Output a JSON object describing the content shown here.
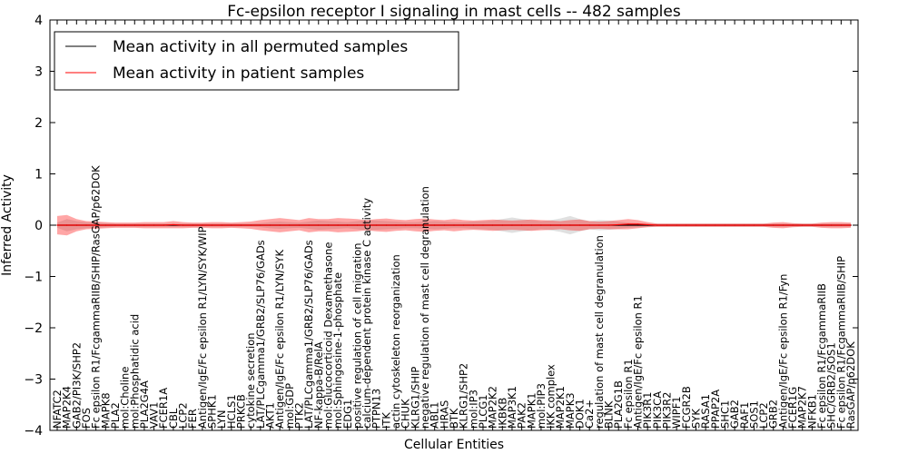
{
  "chart_data": {
    "type": "line",
    "title": "Fc-epsilon receptor I signaling in mast cells -- 482 samples",
    "xlabel": "Cellular Entities",
    "ylabel": "Inferred Activity",
    "ylim": [
      -4,
      4
    ],
    "yticks": [
      -4,
      -3,
      -2,
      -1,
      0,
      1,
      2,
      3,
      4
    ],
    "grid": false,
    "legend_position": "top-left",
    "categories": [
      "NFATC2",
      "MAP2K4",
      "GAB2/PI3K/SHP2",
      "FOS",
      "Fc epsilon R1/FcgammaRIIB/SHIP/RasGAP/p62DOK",
      "MAPK8",
      "PLA2",
      "mol:Choline",
      "mol:Phosphatidic acid",
      "PLA2G4A",
      "VAV1",
      "FCER1A",
      "CBL",
      "LCP2",
      "FER",
      "Antigen/IgE/Fc epsilon R1/LYN/SYK/WIP",
      "SPHK1",
      "LYN",
      "HCLS1",
      "PRKCB",
      "cytokine secretion",
      "LAT/PLCgamma1/GRB2/SLP76/GADs",
      "AKT1",
      "Antigen/IgE/Fc epsilon R1/LYN/SYK",
      "mol:GDP",
      "PTK2",
      "LAT/PLCgamma1/GRB2/SLP76/GADs",
      "NF-kappa-B/RelA",
      "mol:Glucocorticoid Dexamethasone",
      "mol:Sphingosine-1-phosphate",
      "EDG1",
      "positive regulation of cell migration",
      "calcium-dependent protein kinase C activity",
      "PTPN13",
      "ITK",
      "actin cytoskeleton reorganization",
      "CHUK",
      "KLRG1/SHIP",
      "negative regulation of mast cell degranulation",
      "ABL1",
      "HRAS",
      "BTK",
      "KLRG1/SHP2",
      "mol:IP3",
      "PLCG1",
      "MAP2K2",
      "IKBKB",
      "MAP3K1",
      "PAK2",
      "MAPK1",
      "mol:PIP3",
      "IKK complex",
      "MAP2K1",
      "MAPK3",
      "DOK1",
      "Ca2+",
      "regulation of mast cell degranulation",
      "BLNK",
      "PLA2G1B",
      "Fc epsilon R1",
      "Antigen/IgE/Fc epsilon R1",
      "PIK3R1",
      "PIK3CA",
      "PIK3R2",
      "WIPF1",
      "FCGR2B",
      "SYK",
      "RASA1",
      "PPAP2A",
      "SHC1",
      "GAB2",
      "RAF1",
      "SOS1",
      "LCP2",
      "GRB2",
      "Antigen/IgE/Fc epsilon R1/Fyn",
      "FCER1G",
      "MAP2K7",
      "NFKB1",
      "Fc epsilon R1/FcgammaRIIB",
      "SHC/GRB2/SOS1",
      "Fc epsilon R1/FcgammaRIIB/SHIP",
      "RasGAP/p62DOK"
    ],
    "series": [
      {
        "name": "Mean activity in all permuted samples",
        "color": "#000000",
        "values": [
          0.0,
          0.0,
          0.0,
          0.0,
          0.0,
          0.0,
          0.0,
          0.0,
          0.0,
          0.0,
          0.0,
          0.0,
          0.0,
          0.0,
          0.0,
          0.0,
          0.0,
          0.0,
          0.0,
          0.0,
          0.0,
          0.0,
          0.0,
          0.0,
          0.0,
          0.0,
          0.0,
          0.0,
          0.0,
          0.0,
          0.0,
          0.0,
          0.0,
          0.0,
          0.0,
          0.0,
          0.0,
          0.0,
          0.0,
          0.0,
          0.0,
          0.0,
          0.0,
          0.0,
          0.0,
          0.0,
          0.0,
          0.0,
          0.0,
          0.0,
          0.0,
          0.0,
          0.0,
          0.0,
          0.0,
          0.0,
          0.0,
          0.0,
          0.0,
          0.0,
          0.0,
          0.0,
          0.0,
          0.0,
          0.0,
          0.0,
          0.0,
          0.0,
          0.0,
          0.0,
          0.0,
          0.0,
          0.0,
          0.0,
          0.0,
          0.0,
          0.0,
          0.0,
          0.0,
          0.0,
          0.0,
          0.0,
          0.0
        ],
        "band": [
          0.05,
          0.12,
          0.08,
          0.06,
          0.05,
          0.04,
          0.03,
          0.03,
          0.03,
          0.03,
          0.03,
          0.03,
          0.03,
          0.03,
          0.03,
          0.03,
          0.03,
          0.03,
          0.03,
          0.03,
          0.03,
          0.04,
          0.06,
          0.07,
          0.06,
          0.05,
          0.07,
          0.09,
          0.08,
          0.07,
          0.06,
          0.08,
          0.1,
          0.09,
          0.08,
          0.07,
          0.06,
          0.06,
          0.07,
          0.08,
          0.07,
          0.06,
          0.06,
          0.07,
          0.08,
          0.09,
          0.12,
          0.15,
          0.12,
          0.1,
          0.08,
          0.1,
          0.13,
          0.18,
          0.12,
          0.08,
          0.1,
          0.09,
          0.07,
          0.05,
          0.04,
          0.03,
          0.03,
          0.03,
          0.03,
          0.03,
          0.03,
          0.03,
          0.03,
          0.03,
          0.03,
          0.03,
          0.03,
          0.03,
          0.03,
          0.03,
          0.03,
          0.03,
          0.03,
          0.03,
          0.03,
          0.03,
          0.03
        ]
      },
      {
        "name": "Mean activity in patient samples",
        "color": "#ff0000",
        "values": [
          0.0,
          0.0,
          0.0,
          0.0,
          0.0,
          0.0,
          0.0,
          0.0,
          0.0,
          0.0,
          0.0,
          0.0,
          0.01,
          0.0,
          0.0,
          0.0,
          0.0,
          0.0,
          0.0,
          0.0,
          0.0,
          0.0,
          0.0,
          0.0,
          0.0,
          0.0,
          0.0,
          0.0,
          0.0,
          0.0,
          0.0,
          0.0,
          0.0,
          0.0,
          0.0,
          0.0,
          0.0,
          0.0,
          0.0,
          0.0,
          0.0,
          0.0,
          0.0,
          0.0,
          0.0,
          0.0,
          0.0,
          0.0,
          0.0,
          0.0,
          0.0,
          0.0,
          0.0,
          0.0,
          0.0,
          0.0,
          0.0,
          0.0,
          0.01,
          0.02,
          0.02,
          0.01,
          0.0,
          0.0,
          0.0,
          0.0,
          0.0,
          0.0,
          0.0,
          0.0,
          0.0,
          0.0,
          0.0,
          0.0,
          0.0,
          0.0,
          0.0,
          0.0,
          0.0,
          0.0,
          0.0,
          0.0,
          0.0
        ],
        "band": [
          0.18,
          0.2,
          0.12,
          0.08,
          0.07,
          0.06,
          0.05,
          0.05,
          0.05,
          0.06,
          0.06,
          0.06,
          0.07,
          0.06,
          0.05,
          0.05,
          0.06,
          0.06,
          0.05,
          0.06,
          0.07,
          0.1,
          0.12,
          0.14,
          0.12,
          0.1,
          0.14,
          0.12,
          0.12,
          0.14,
          0.13,
          0.12,
          0.1,
          0.12,
          0.13,
          0.11,
          0.1,
          0.12,
          0.13,
          0.11,
          0.1,
          0.12,
          0.1,
          0.09,
          0.1,
          0.11,
          0.1,
          0.09,
          0.1,
          0.11,
          0.1,
          0.09,
          0.08,
          0.1,
          0.11,
          0.08,
          0.07,
          0.08,
          0.09,
          0.1,
          0.08,
          0.05,
          0.03,
          0.03,
          0.03,
          0.03,
          0.03,
          0.03,
          0.03,
          0.03,
          0.03,
          0.03,
          0.03,
          0.03,
          0.05,
          0.06,
          0.04,
          0.03,
          0.03,
          0.05,
          0.06,
          0.06,
          0.05
        ]
      }
    ]
  }
}
